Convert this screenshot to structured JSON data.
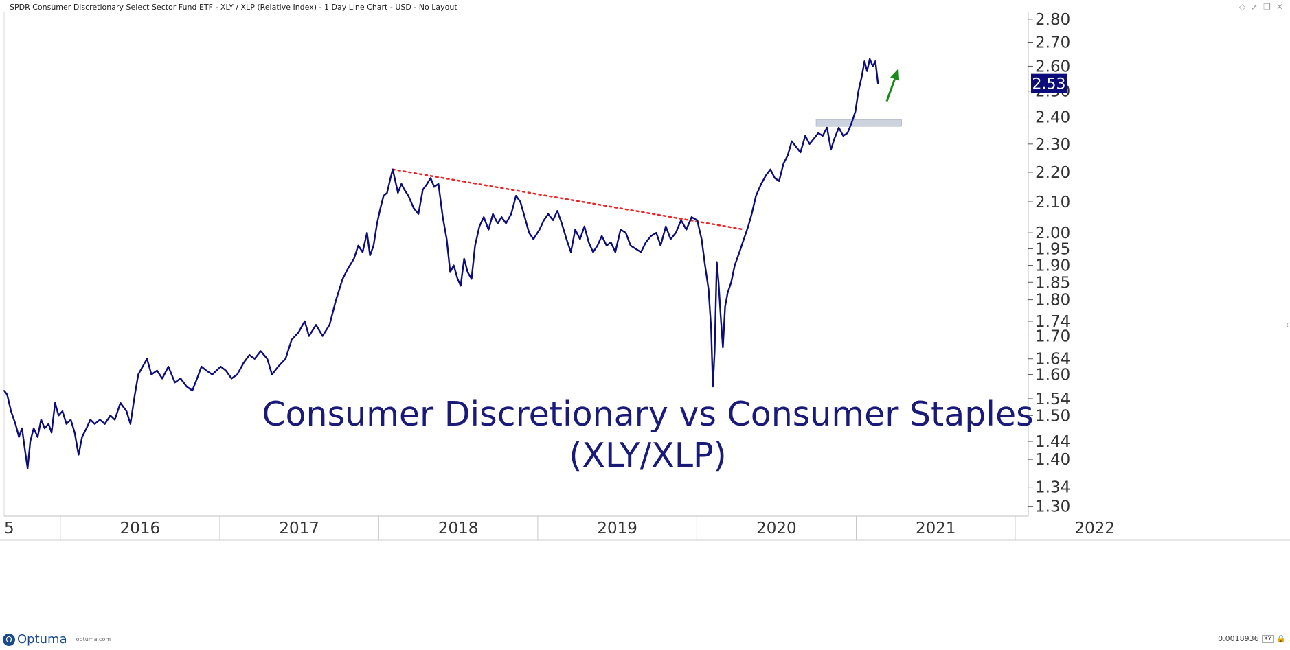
{
  "window": {
    "title": "SPDR Consumer Discretionary Select Sector Fund ETF - XLY / XLP (Relative Index) - 1 Day Line Chart - USD - No Layout",
    "icons": [
      "diamond-icon",
      "pin-icon",
      "restore-icon",
      "close-icon"
    ]
  },
  "footer": {
    "brand": "Optuma",
    "url": "optuma.com",
    "readout": "0.0018936",
    "xy_label": "XY",
    "lock_glyph": "🔒"
  },
  "colors": {
    "series": "#0c0c7a",
    "trendline": "#ee2222",
    "arrow": "#1a8a1a",
    "zone": "#cdd3de",
    "price_badge": "#0c0c7a"
  },
  "chart_data": {
    "type": "line",
    "scale": "log",
    "ylim": [
      1.28,
      2.83
    ],
    "y_ticks": [
      "2.80",
      "2.70",
      "2.60",
      "2.50",
      "2.40",
      "2.30",
      "2.20",
      "2.10",
      "2.00",
      "1.95",
      "1.90",
      "1.85",
      "1.80",
      "1.74",
      "1.70",
      "1.64",
      "1.60",
      "1.54",
      "1.50",
      "1.44",
      "1.40",
      "1.34",
      "1.30"
    ],
    "x_ticks": [
      "2016",
      "2017",
      "2018",
      "2019",
      "2020",
      "2021",
      "2022"
    ],
    "last_value": "2.53",
    "annotation_line1": "Consumer Discretionary vs Consumer Staples",
    "annotation_line2": "(XLY/XLP)",
    "series": [
      {
        "points": [
          [
            "2015-08-25",
            1.56
          ],
          [
            "2015-09-01",
            1.55
          ],
          [
            "2015-09-10",
            1.51
          ],
          [
            "2015-09-20",
            1.48
          ],
          [
            "2015-09-28",
            1.45
          ],
          [
            "2015-10-05",
            1.47
          ],
          [
            "2015-10-12",
            1.42
          ],
          [
            "2015-10-18",
            1.38
          ],
          [
            "2015-10-24",
            1.44
          ],
          [
            "2015-11-01",
            1.47
          ],
          [
            "2015-11-10",
            1.45
          ],
          [
            "2015-11-18",
            1.49
          ],
          [
            "2015-11-26",
            1.47
          ],
          [
            "2015-12-05",
            1.48
          ],
          [
            "2015-12-12",
            1.46
          ],
          [
            "2015-12-20",
            1.53
          ],
          [
            "2015-12-28",
            1.5
          ],
          [
            "2016-01-06",
            1.51
          ],
          [
            "2016-01-15",
            1.48
          ],
          [
            "2016-01-25",
            1.49
          ],
          [
            "2016-02-03",
            1.46
          ],
          [
            "2016-02-12",
            1.41
          ],
          [
            "2016-02-20",
            1.45
          ],
          [
            "2016-03-01",
            1.47
          ],
          [
            "2016-03-10",
            1.49
          ],
          [
            "2016-03-20",
            1.48
          ],
          [
            "2016-04-01",
            1.49
          ],
          [
            "2016-04-12",
            1.48
          ],
          [
            "2016-04-25",
            1.5
          ],
          [
            "2016-05-05",
            1.49
          ],
          [
            "2016-05-18",
            1.53
          ],
          [
            "2016-06-01",
            1.51
          ],
          [
            "2016-06-10",
            1.48
          ],
          [
            "2016-06-20",
            1.55
          ],
          [
            "2016-06-28",
            1.6
          ],
          [
            "2016-07-08",
            1.62
          ],
          [
            "2016-07-18",
            1.64
          ],
          [
            "2016-07-28",
            1.6
          ],
          [
            "2016-08-10",
            1.61
          ],
          [
            "2016-08-22",
            1.59
          ],
          [
            "2016-09-05",
            1.62
          ],
          [
            "2016-09-20",
            1.58
          ],
          [
            "2016-10-03",
            1.59
          ],
          [
            "2016-10-17",
            1.57
          ],
          [
            "2016-10-30",
            1.56
          ],
          [
            "2016-11-10",
            1.59
          ],
          [
            "2016-11-20",
            1.62
          ],
          [
            "2016-12-01",
            1.61
          ],
          [
            "2016-12-15",
            1.6
          ],
          [
            "2017-01-03",
            1.62
          ],
          [
            "2017-01-15",
            1.61
          ],
          [
            "2017-01-28",
            1.59
          ],
          [
            "2017-02-10",
            1.6
          ],
          [
            "2017-02-25",
            1.63
          ],
          [
            "2017-03-10",
            1.65
          ],
          [
            "2017-03-22",
            1.64
          ],
          [
            "2017-04-05",
            1.66
          ],
          [
            "2017-04-20",
            1.64
          ],
          [
            "2017-05-01",
            1.6
          ],
          [
            "2017-05-15",
            1.62
          ],
          [
            "2017-06-01",
            1.64
          ],
          [
            "2017-06-15",
            1.69
          ],
          [
            "2017-07-01",
            1.71
          ],
          [
            "2017-07-15",
            1.74
          ],
          [
            "2017-07-25",
            1.7
          ],
          [
            "2017-08-10",
            1.73
          ],
          [
            "2017-08-25",
            1.7
          ],
          [
            "2017-09-10",
            1.73
          ],
          [
            "2017-09-25",
            1.8
          ],
          [
            "2017-10-10",
            1.86
          ],
          [
            "2017-10-22",
            1.89
          ],
          [
            "2017-11-05",
            1.92
          ],
          [
            "2017-11-15",
            1.96
          ],
          [
            "2017-11-25",
            1.94
          ],
          [
            "2017-12-05",
            2.0
          ],
          [
            "2017-12-12",
            1.93
          ],
          [
            "2017-12-20",
            1.96
          ],
          [
            "2017-12-28",
            2.03
          ],
          [
            "2018-01-05",
            2.08
          ],
          [
            "2018-01-12",
            2.12
          ],
          [
            "2018-01-20",
            2.13
          ],
          [
            "2018-01-28",
            2.18
          ],
          [
            "2018-02-02",
            2.21
          ],
          [
            "2018-02-08",
            2.17
          ],
          [
            "2018-02-14",
            2.13
          ],
          [
            "2018-02-22",
            2.16
          ],
          [
            "2018-03-01",
            2.14
          ],
          [
            "2018-03-10",
            2.12
          ],
          [
            "2018-03-22",
            2.08
          ],
          [
            "2018-04-02",
            2.06
          ],
          [
            "2018-04-12",
            2.14
          ],
          [
            "2018-04-22",
            2.16
          ],
          [
            "2018-04-30",
            2.18
          ],
          [
            "2018-05-08",
            2.15
          ],
          [
            "2018-05-18",
            2.16
          ],
          [
            "2018-05-28",
            2.05
          ],
          [
            "2018-06-06",
            1.98
          ],
          [
            "2018-06-14",
            1.88
          ],
          [
            "2018-06-22",
            1.9
          ],
          [
            "2018-07-01",
            1.86
          ],
          [
            "2018-07-08",
            1.84
          ],
          [
            "2018-07-16",
            1.92
          ],
          [
            "2018-07-24",
            1.88
          ],
          [
            "2018-08-02",
            1.86
          ],
          [
            "2018-08-10",
            1.96
          ],
          [
            "2018-08-20",
            2.02
          ],
          [
            "2018-08-30",
            2.05
          ],
          [
            "2018-09-10",
            2.01
          ],
          [
            "2018-09-20",
            2.06
          ],
          [
            "2018-10-01",
            2.03
          ],
          [
            "2018-10-10",
            2.05
          ],
          [
            "2018-10-20",
            2.03
          ],
          [
            "2018-11-01",
            2.06
          ],
          [
            "2018-11-12",
            2.12
          ],
          [
            "2018-11-22",
            2.1
          ],
          [
            "2018-12-02",
            2.05
          ],
          [
            "2018-12-12",
            2.0
          ],
          [
            "2018-12-22",
            1.98
          ],
          [
            "2019-01-05",
            2.01
          ],
          [
            "2019-01-15",
            2.04
          ],
          [
            "2019-01-25",
            2.06
          ],
          [
            "2019-02-05",
            2.04
          ],
          [
            "2019-02-15",
            2.07
          ],
          [
            "2019-02-25",
            2.03
          ],
          [
            "2019-03-08",
            1.98
          ],
          [
            "2019-03-18",
            1.94
          ],
          [
            "2019-03-28",
            2.01
          ],
          [
            "2019-04-08",
            1.98
          ],
          [
            "2019-04-18",
            2.02
          ],
          [
            "2019-04-28",
            1.97
          ],
          [
            "2019-05-08",
            1.94
          ],
          [
            "2019-05-18",
            1.96
          ],
          [
            "2019-05-28",
            1.99
          ],
          [
            "2019-06-08",
            1.96
          ],
          [
            "2019-06-18",
            1.97
          ],
          [
            "2019-06-28",
            1.94
          ],
          [
            "2019-07-10",
            2.01
          ],
          [
            "2019-07-22",
            2.0
          ],
          [
            "2019-08-02",
            1.96
          ],
          [
            "2019-08-14",
            1.95
          ],
          [
            "2019-08-26",
            1.94
          ],
          [
            "2019-09-06",
            1.97
          ],
          [
            "2019-09-18",
            1.99
          ],
          [
            "2019-09-30",
            2.0
          ],
          [
            "2019-10-10",
            1.96
          ],
          [
            "2019-10-22",
            2.02
          ],
          [
            "2019-11-02",
            1.98
          ],
          [
            "2019-11-14",
            2.0
          ],
          [
            "2019-11-26",
            2.04
          ],
          [
            "2019-12-08",
            2.01
          ],
          [
            "2019-12-20",
            2.05
          ],
          [
            "2020-01-02",
            2.04
          ],
          [
            "2020-01-12",
            1.98
          ],
          [
            "2020-01-20",
            1.9
          ],
          [
            "2020-01-28",
            1.83
          ],
          [
            "2020-02-03",
            1.72
          ],
          [
            "2020-02-07",
            1.57
          ],
          [
            "2020-02-11",
            1.66
          ],
          [
            "2020-02-16",
            1.91
          ],
          [
            "2020-02-20",
            1.85
          ],
          [
            "2020-02-25",
            1.75
          ],
          [
            "2020-03-01",
            1.67
          ],
          [
            "2020-03-06",
            1.78
          ],
          [
            "2020-03-12",
            1.82
          ],
          [
            "2020-03-20",
            1.85
          ],
          [
            "2020-03-28",
            1.9
          ],
          [
            "2020-04-08",
            1.94
          ],
          [
            "2020-04-18",
            1.98
          ],
          [
            "2020-04-28",
            2.02
          ],
          [
            "2020-05-06",
            2.06
          ],
          [
            "2020-05-16",
            2.12
          ],
          [
            "2020-05-28",
            2.16
          ],
          [
            "2020-06-08",
            2.19
          ],
          [
            "2020-06-18",
            2.21
          ],
          [
            "2020-06-28",
            2.18
          ],
          [
            "2020-07-08",
            2.17
          ],
          [
            "2020-07-18",
            2.23
          ],
          [
            "2020-07-28",
            2.26
          ],
          [
            "2020-08-06",
            2.31
          ],
          [
            "2020-08-16",
            2.29
          ],
          [
            "2020-08-26",
            2.27
          ],
          [
            "2020-09-06",
            2.33
          ],
          [
            "2020-09-16",
            2.3
          ],
          [
            "2020-09-26",
            2.32
          ],
          [
            "2020-10-06",
            2.34
          ],
          [
            "2020-10-16",
            2.33
          ],
          [
            "2020-10-26",
            2.36
          ],
          [
            "2020-11-04",
            2.28
          ],
          [
            "2020-11-12",
            2.32
          ],
          [
            "2020-11-22",
            2.36
          ],
          [
            "2020-12-02",
            2.33
          ],
          [
            "2020-12-12",
            2.34
          ],
          [
            "2020-12-22",
            2.38
          ],
          [
            "2020-12-30",
            2.42
          ],
          [
            "2021-01-06",
            2.5
          ],
          [
            "2021-01-14",
            2.56
          ],
          [
            "2021-01-20",
            2.62
          ],
          [
            "2021-01-26",
            2.58
          ],
          [
            "2021-02-01",
            2.63
          ],
          [
            "2021-02-08",
            2.6
          ],
          [
            "2021-02-14",
            2.62
          ],
          [
            "2021-02-20",
            2.53
          ]
        ]
      }
    ],
    "trendline": {
      "start": [
        "2018-02-02",
        2.21
      ],
      "end": [
        "2020-04-20",
        2.01
      ]
    },
    "breakout_zone": {
      "x_start": "2020-10-01",
      "x_end": "2021-04-15",
      "y_low": 2.365,
      "y_high": 2.39
    },
    "arrow": {
      "from": [
        "2021-03-12",
        2.46
      ],
      "to": [
        "2021-04-08",
        2.59
      ]
    }
  }
}
